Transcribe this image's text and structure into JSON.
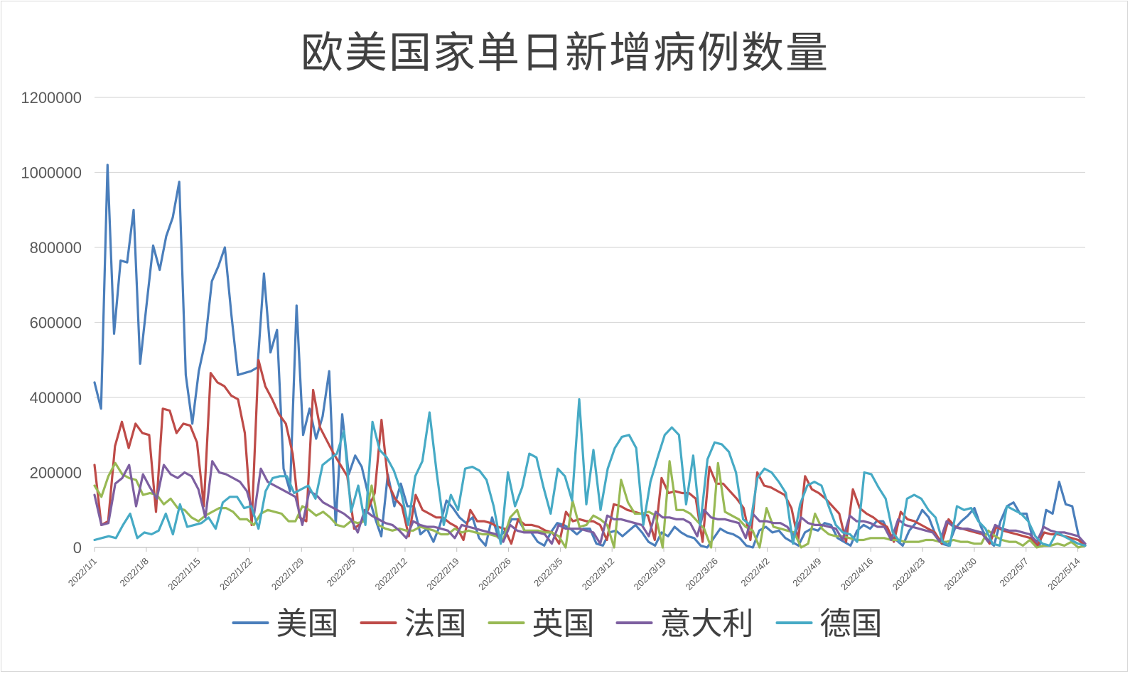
{
  "chart_data": {
    "type": "line",
    "title": "欧美国家单日新增病例数量",
    "xlabel": "",
    "ylabel": "",
    "ylim": [
      0,
      1200000
    ],
    "yticks": [
      0,
      200000,
      400000,
      600000,
      800000,
      1000000,
      1200000
    ],
    "xticks": [
      "2022/1/1",
      "2022/1/8",
      "2022/1/15",
      "2022/1/22",
      "2022/1/29",
      "2022/2/5",
      "2022/2/12",
      "2022/2/19",
      "2022/2/26",
      "2022/3/5",
      "2022/3/12",
      "2022/3/19",
      "2022/3/26",
      "2022/4/2",
      "2022/4/9",
      "2022/4/16",
      "2022/4/23",
      "2022/4/30",
      "2022/5/7",
      "2022/5/14"
    ],
    "x_start": "2022/1/1",
    "x_end": "2022/5/15",
    "grid": true,
    "legend_position": "bottom",
    "colors": {
      "美国": "#4a7ebb",
      "法国": "#be4b48",
      "英国": "#98b954",
      "意大利": "#7d5fa0",
      "德国": "#46aac5",
      "grid": "#d9d9d9",
      "axis": "#bfbfbf"
    },
    "series": [
      {
        "name": "美国",
        "values": [
          440000,
          370000,
          1020000,
          570000,
          765000,
          760000,
          900000,
          490000,
          650000,
          805000,
          740000,
          830000,
          880000,
          975000,
          460000,
          330000,
          470000,
          550000,
          710000,
          750000,
          800000,
          620000,
          460000,
          465000,
          470000,
          480000,
          730000,
          520000,
          580000,
          210000,
          150000,
          645000,
          300000,
          370000,
          290000,
          350000,
          470000,
          60000,
          355000,
          195000,
          245000,
          215000,
          140000,
          80000,
          30000,
          195000,
          110000,
          170000,
          110000,
          110000,
          35000,
          50000,
          15000,
          60000,
          125000,
          105000,
          80000,
          65000,
          80000,
          25000,
          5000,
          80000,
          25000,
          45000,
          75000,
          75000,
          45000,
          40000,
          15000,
          5000,
          40000,
          65000,
          60000,
          50000,
          35000,
          50000,
          50000,
          10000,
          5000,
          40000,
          45000,
          30000,
          45000,
          60000,
          40000,
          15000,
          5000,
          40000,
          30000,
          55000,
          40000,
          30000,
          25000,
          5000,
          0,
          25000,
          50000,
          40000,
          35000,
          25000,
          5000,
          0,
          45000,
          55000,
          40000,
          45000,
          25000,
          15000,
          5000,
          40000,
          50000,
          45000,
          65000,
          60000,
          25000,
          15000,
          5000,
          45000,
          60000,
          50000,
          70000,
          70000,
          35000,
          20000,
          5000,
          45000,
          65000,
          100000,
          80000,
          35000,
          10000,
          5000,
          50000,
          70000,
          85000,
          105000,
          55000,
          20000,
          5000,
          70000,
          110000,
          120000,
          90000,
          90000,
          20000,
          5000,
          100000,
          90000,
          175000,
          115000,
          110000,
          30000,
          5000
        ]
      },
      {
        "name": "法国",
        "values": [
          220000,
          60000,
          70000,
          270000,
          335000,
          265000,
          330000,
          305000,
          300000,
          95000,
          370000,
          365000,
          305000,
          330000,
          325000,
          280000,
          110000,
          465000,
          440000,
          430000,
          405000,
          395000,
          305000,
          60000,
          500000,
          430000,
          395000,
          355000,
          330000,
          250000,
          80000,
          70000,
          420000,
          320000,
          285000,
          250000,
          220000,
          190000,
          50000,
          65000,
          100000,
          145000,
          340000,
          170000,
          130000,
          110000,
          30000,
          140000,
          100000,
          90000,
          80000,
          80000,
          65000,
          55000,
          20000,
          100000,
          70000,
          70000,
          65000,
          55000,
          50000,
          10000,
          75000,
          60000,
          60000,
          55000,
          45000,
          40000,
          10000,
          95000,
          70000,
          75000,
          70000,
          70000,
          60000,
          20000,
          115000,
          110000,
          100000,
          95000,
          90000,
          85000,
          20000,
          185000,
          145000,
          150000,
          145000,
          145000,
          130000,
          15000,
          215000,
          170000,
          170000,
          150000,
          130000,
          105000,
          20000,
          200000,
          165000,
          160000,
          150000,
          140000,
          105000,
          20000,
          190000,
          155000,
          145000,
          130000,
          110000,
          90000,
          15000,
          155000,
          105000,
          90000,
          80000,
          65000,
          55000,
          15000,
          95000,
          75000,
          70000,
          60000,
          50000,
          40000,
          10000,
          75000,
          55000,
          50000,
          45000,
          40000,
          35000,
          10000,
          55000,
          45000,
          40000,
          35000,
          30000,
          25000,
          5000,
          40000,
          35000,
          35000,
          30000,
          25000,
          20000,
          5000
        ]
      },
      {
        "name": "英国",
        "values": [
          165000,
          135000,
          190000,
          225000,
          195000,
          185000,
          180000,
          140000,
          145000,
          140000,
          115000,
          130000,
          105000,
          100000,
          80000,
          70000,
          85000,
          95000,
          105000,
          105000,
          95000,
          75000,
          75000,
          60000,
          90000,
          100000,
          95000,
          90000,
          70000,
          70000,
          110000,
          100000,
          85000,
          95000,
          80000,
          60000,
          55000,
          70000,
          65000,
          70000,
          165000,
          60000,
          50000,
          45000,
          50000,
          45000,
          45000,
          55000,
          50000,
          45000,
          35000,
          35000,
          50000,
          40000,
          45000,
          40000,
          35000,
          35000,
          30000,
          20000,
          80000,
          100000,
          45000,
          45000,
          45000,
          40000,
          40000,
          30000,
          0,
          125000,
          55000,
          60000,
          85000,
          75000,
          60000,
          0,
          180000,
          120000,
          90000,
          90000,
          95000,
          85000,
          0,
          230000,
          100000,
          100000,
          90000,
          70000,
          50000,
          0,
          225000,
          95000,
          85000,
          75000,
          55000,
          45000,
          0,
          105000,
          55000,
          50000,
          45000,
          40000,
          0,
          10000,
          90000,
          50000,
          35000,
          30000,
          30000,
          25000,
          20000,
          20000,
          25000,
          25000,
          25000,
          20000,
          20000,
          15000,
          15000,
          15000,
          20000,
          20000,
          15000,
          15000,
          20000,
          15000,
          15000,
          10000,
          10000,
          45000,
          30000,
          20000,
          15000,
          15000,
          5000,
          20000,
          0,
          5000,
          5000,
          10000,
          5000,
          15000,
          0,
          5000
        ]
      },
      {
        "name": "意大利",
        "values": [
          140000,
          60000,
          65000,
          170000,
          185000,
          220000,
          110000,
          195000,
          160000,
          130000,
          220000,
          195000,
          185000,
          200000,
          190000,
          155000,
          80000,
          230000,
          200000,
          195000,
          185000,
          175000,
          150000,
          85000,
          210000,
          175000,
          165000,
          155000,
          145000,
          135000,
          60000,
          150000,
          140000,
          120000,
          110000,
          100000,
          90000,
          75000,
          40000,
          100000,
          85000,
          75000,
          65000,
          60000,
          45000,
          25000,
          70000,
          60000,
          55000,
          55000,
          50000,
          45000,
          25000,
          60000,
          55000,
          50000,
          45000,
          40000,
          35000,
          15000,
          60000,
          45000,
          40000,
          40000,
          40000,
          35000,
          10000,
          60000,
          50000,
          50000,
          50000,
          45000,
          40000,
          10000,
          85000,
          75000,
          75000,
          70000,
          65000,
          60000,
          30000,
          95000,
          80000,
          80000,
          75000,
          75000,
          65000,
          30000,
          100000,
          80000,
          75000,
          75000,
          70000,
          65000,
          25000,
          90000,
          70000,
          70000,
          65000,
          65000,
          55000,
          30000,
          80000,
          65000,
          60000,
          60000,
          55000,
          50000,
          20000,
          85000,
          70000,
          70000,
          65000,
          55000,
          55000,
          20000,
          75000,
          60000,
          55000,
          50000,
          45000,
          40000,
          15000,
          70000,
          55000,
          50000,
          50000,
          45000,
          40000,
          15000,
          60000,
          50000,
          45000,
          45000,
          40000,
          35000,
          15000,
          55000,
          45000,
          40000,
          40000,
          35000,
          30000,
          10000
        ]
      },
      {
        "name": "德国",
        "values": [
          20000,
          25000,
          30000,
          25000,
          60000,
          90000,
          25000,
          40000,
          35000,
          45000,
          90000,
          35000,
          115000,
          55000,
          60000,
          65000,
          80000,
          50000,
          120000,
          135000,
          135000,
          105000,
          110000,
          50000,
          150000,
          185000,
          190000,
          190000,
          145000,
          155000,
          165000,
          130000,
          220000,
          235000,
          250000,
          310000,
          95000,
          165000,
          60000,
          335000,
          260000,
          240000,
          205000,
          150000,
          60000,
          190000,
          230000,
          360000,
          200000,
          60000,
          140000,
          100000,
          210000,
          215000,
          205000,
          180000,
          110000,
          10000,
          200000,
          110000,
          160000,
          250000,
          240000,
          160000,
          90000,
          210000,
          190000,
          125000,
          395000,
          115000,
          260000,
          100000,
          210000,
          265000,
          295000,
          300000,
          265000,
          60000,
          175000,
          240000,
          300000,
          320000,
          300000,
          115000,
          245000,
          60000,
          235000,
          280000,
          275000,
          255000,
          200000,
          75000,
          60000,
          185000,
          210000,
          200000,
          175000,
          145000,
          10000,
          115000,
          165000,
          175000,
          165000,
          110000,
          60000,
          40000,
          35000,
          15000,
          200000,
          195000,
          160000,
          130000,
          40000,
          15000,
          130000,
          140000,
          130000,
          100000,
          80000,
          15000,
          5000,
          110000,
          100000,
          105000,
          70000,
          50000,
          10000,
          5000,
          110000,
          100000,
          90000,
          70000,
          30000,
          10000,
          5000,
          40000,
          30000,
          20000,
          10000,
          5000
        ]
      }
    ]
  }
}
